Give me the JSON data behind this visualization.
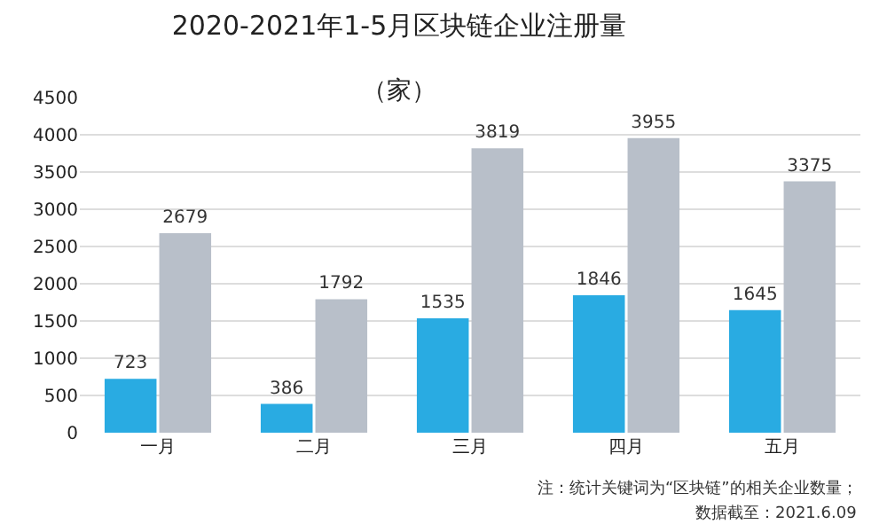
{
  "chart_data": {
    "type": "bar",
    "title": "2020-2021年1-5月区块链企业注册量",
    "subtitle": "（家）",
    "categories": [
      "一月",
      "二月",
      "三月",
      "四月",
      "五月"
    ],
    "series": [
      {
        "color": "#29abe2",
        "values": [
          723,
          386,
          1535,
          1846,
          1645
        ]
      },
      {
        "color": "#b8bfc9",
        "values": [
          2679,
          1792,
          3819,
          3955,
          3375
        ]
      }
    ],
    "ylim": [
      0,
      4500
    ],
    "yticks": [
      0,
      500,
      1000,
      1500,
      2000,
      2500,
      3000,
      3500,
      4000,
      4500
    ],
    "grid": "y",
    "data_labels": true,
    "annotations": [
      "注：统计关键词为“区块链”的相关企业数量；",
      "数据截至：2021.6.09"
    ]
  }
}
